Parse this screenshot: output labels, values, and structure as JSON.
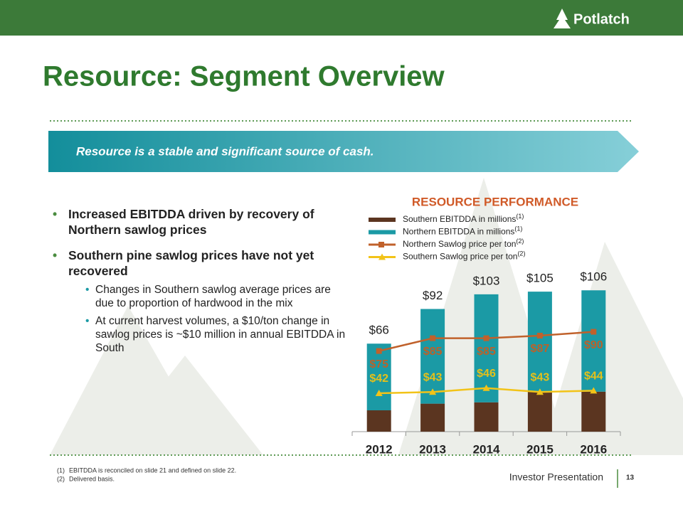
{
  "header": {
    "logo": "Potlatch"
  },
  "title": "Resource: Segment Overview",
  "banner": "Resource is a stable and significant source of cash.",
  "bullets": [
    {
      "text": "Increased EBITDDA driven by recovery of Northern sawlog prices"
    },
    {
      "text": "Southern pine sawlog prices have not yet recovered",
      "sub": [
        "Changes in Southern sawlog average prices are due to proportion of hardwood in the mix",
        "At current harvest volumes, a $10/ton change in sawlog prices is ~$10 million in annual EBITDDA in South"
      ]
    }
  ],
  "chart_data": {
    "type": "bar",
    "stacked": true,
    "title": "RESOURCE PERFORMANCE",
    "categories": [
      "2012",
      "2013",
      "2014",
      "2015",
      "2016"
    ],
    "ylim": [
      0,
      120
    ],
    "y2lim": [
      12,
      137
    ],
    "total_labels": [
      "$66",
      "$92",
      "$103",
      "$105",
      "$106"
    ],
    "series": [
      {
        "name": "Southern EBITDDA in millions",
        "note": "(1)",
        "type": "bar",
        "color": "#5b3520",
        "values": [
          16,
          21,
          22,
          30,
          30
        ]
      },
      {
        "name": "Northern EBITDDA in millions",
        "note": "(1)",
        "type": "bar",
        "color": "#1b9aa5",
        "values": [
          50,
          71,
          81,
          75,
          76
        ]
      },
      {
        "name": "Northern Sawlog price per ton",
        "note": "(2)",
        "type": "line",
        "axis": "y2",
        "marker": "square",
        "color": "#c0612b",
        "label_color": "#b9622b",
        "values": [
          75,
          85,
          85,
          87,
          90
        ],
        "value_labels": [
          "$75",
          "$85",
          "$85",
          "$87",
          "$90"
        ]
      },
      {
        "name": "Southern Sawlog price per ton",
        "note": "(2)",
        "type": "line",
        "axis": "y2",
        "marker": "triangle",
        "color": "#f2c318",
        "label_color": "#e5c01a",
        "values": [
          42,
          43,
          46,
          43,
          44
        ],
        "value_labels": [
          "$42",
          "$43",
          "$46",
          "$43",
          "$44"
        ]
      }
    ]
  },
  "footnotes": [
    {
      "num": "(1)",
      "text": "EBITDDA is reconciled on slide 21 and defined on slide 22."
    },
    {
      "num": "(2)",
      "text": "Delivered basis."
    }
  ],
  "footer": {
    "label": "Investor Presentation",
    "page": "13"
  }
}
